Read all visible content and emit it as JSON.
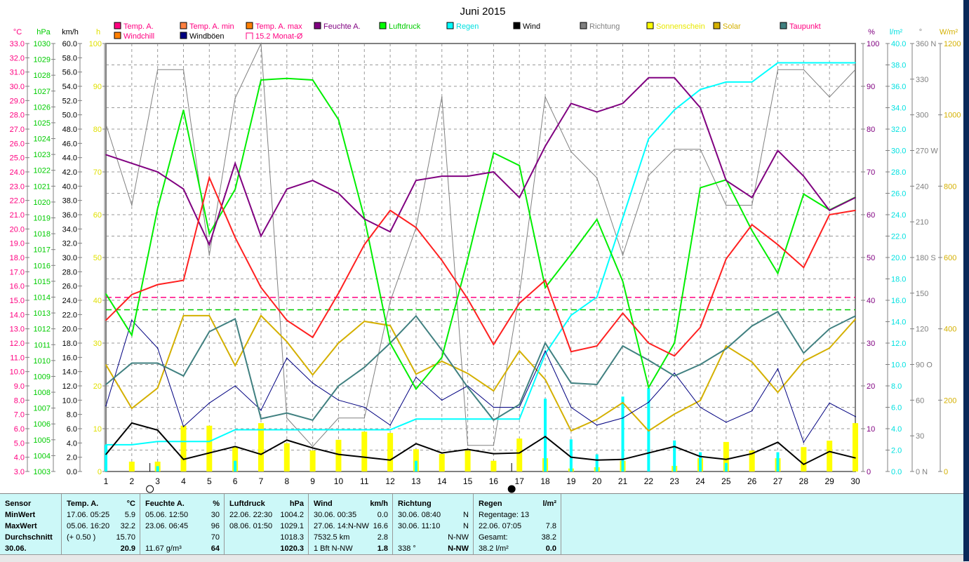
{
  "chart_data": {
    "type": "line",
    "title": "Juni 2015",
    "x": [
      1,
      2,
      3,
      4,
      5,
      6,
      7,
      8,
      9,
      10,
      11,
      12,
      13,
      14,
      15,
      16,
      17,
      18,
      19,
      20,
      21,
      22,
      23,
      24,
      25,
      26,
      27,
      28,
      29,
      30
    ],
    "axes": {
      "degC": {
        "label": "°C",
        "range": [
          3,
          33
        ],
        "ticks": [
          "33.0",
          "32.0",
          "31.0",
          "30.0",
          "29.0",
          "28.0",
          "27.0",
          "26.0",
          "25.0",
          "24.0",
          "23.0",
          "22.0",
          "21.0",
          "20.0",
          "19.0",
          "18.0",
          "17.0",
          "16.0",
          "15.0",
          "14.0",
          "13.0",
          "12.0",
          "11.0",
          "10.0",
          "9.0",
          "8.0",
          "7.0",
          "6.0",
          "5.0",
          "4.0",
          "3.0"
        ],
        "color": "#ff0080"
      },
      "hPa": {
        "label": "hPa",
        "range": [
          1003,
          1030
        ],
        "ticks": [
          "1030",
          "1029",
          "1028",
          "1027",
          "1026",
          "1025",
          "1024",
          "1023",
          "1022",
          "1021",
          "1020",
          "1019",
          "1018",
          "1017",
          "1016",
          "1015",
          "1014",
          "1013",
          "1012",
          "1011",
          "1010",
          "1009",
          "1008",
          "1007",
          "1006",
          "1005",
          "1004",
          "1003"
        ],
        "color": "#00cc00"
      },
      "kmh": {
        "label": "km/h",
        "range": [
          0,
          60
        ],
        "ticks": [
          "60.0",
          "58.0",
          "56.0",
          "54.0",
          "52.0",
          "50.0",
          "48.0",
          "46.0",
          "44.0",
          "42.0",
          "40.0",
          "38.0",
          "36.0",
          "34.0",
          "32.0",
          "30.0",
          "28.0",
          "26.0",
          "24.0",
          "22.0",
          "20.0",
          "18.0",
          "16.0",
          "14.0",
          "12.0",
          "10.0",
          "8.0",
          "6.0",
          "4.0",
          "2.0",
          "0.0"
        ],
        "color": "#000000"
      },
      "h": {
        "label": "h",
        "range": [
          0,
          100
        ],
        "ticks": [
          "100",
          "90",
          "80",
          "70",
          "60",
          "50",
          "40",
          "30",
          "20",
          "10",
          "0"
        ],
        "color": "#e0e000"
      },
      "pct": {
        "label": "%",
        "range": [
          0,
          100
        ],
        "ticks": [
          "100",
          "90",
          "80",
          "70",
          "60",
          "50",
          "40",
          "30",
          "20",
          "10",
          "0"
        ],
        "color": "#800080"
      },
      "lm2": {
        "label": "l/m²",
        "range": [
          0,
          40
        ],
        "ticks": [
          "40.0",
          "38.0",
          "36.0",
          "34.0",
          "32.0",
          "30.0",
          "28.0",
          "26.0",
          "24.0",
          "22.0",
          "20.0",
          "18.0",
          "16.0",
          "14.0",
          "12.0",
          "10.0",
          "8.0",
          "6.0",
          "4.0",
          "2.0",
          "0.0"
        ],
        "color": "#00e0e0"
      },
      "deg": {
        "label": "°",
        "range": [
          0,
          360
        ],
        "ticks": [
          "360 N",
          "330",
          "300",
          "270 W",
          "240",
          "210",
          "180 S",
          "150",
          "120",
          "90 O",
          "60",
          "30",
          "0 N"
        ],
        "color": "#808080"
      },
      "wm2": {
        "label": "W/m²",
        "range": [
          0,
          1200
        ],
        "ticks": [
          "1200",
          "1000",
          "800",
          "600",
          "400",
          "200",
          "0"
        ],
        "color": "#d4b000"
      }
    },
    "series": [
      {
        "name": "Richtung",
        "axis": "deg",
        "color": "#808080",
        "width": 1,
        "values": [
          292,
          224,
          338,
          338,
          182,
          314,
          360,
          45,
          21,
          45,
          45,
          143,
          205,
          315,
          22,
          22,
          149,
          315,
          269,
          247,
          182,
          249,
          271,
          271,
          224,
          224,
          338,
          338,
          315,
          338
        ]
      },
      {
        "name": "Solar",
        "axis": "wm2",
        "color": "#d4b000",
        "width": 2,
        "values": [
          299,
          177,
          234,
          437,
          437,
          297,
          437,
          364,
          271,
          360,
          421,
          409,
          273,
          309,
          275,
          226,
          338,
          258,
          114,
          146,
          193,
          114,
          161,
          199,
          352,
          307,
          222,
          309,
          346,
          427
        ]
      },
      {
        "name": "Regen",
        "axis": "lm2",
        "color": "#00ffff",
        "width": 2,
        "values": [
          2.5,
          2.5,
          2.8,
          2.8,
          2.8,
          3.9,
          3.9,
          3.9,
          3.9,
          3.9,
          3.9,
          3.9,
          4.9,
          4.9,
          4.9,
          4.9,
          4.9,
          11.0,
          14.6,
          16.3,
          23.7,
          31.1,
          33.8,
          35.7,
          36.4,
          36.4,
          38.2,
          38.2,
          38.2,
          38.2
        ]
      },
      {
        "name": "Windböen",
        "axis": "kmh",
        "color": "#000080",
        "width": 1,
        "values": [
          9.2,
          21.2,
          17.3,
          6.3,
          9.6,
          12.0,
          8.6,
          15.9,
          12.4,
          10.0,
          9.0,
          6.5,
          13.2,
          10.0,
          12.0,
          9.0,
          9.0,
          16.9,
          9.0,
          6.5,
          7.5,
          9.7,
          13.8,
          9.0,
          6.9,
          8.5,
          14.4,
          4.1,
          9.6,
          7.7
        ]
      },
      {
        "name": "Taupunkt",
        "axis": "degC",
        "color": "#408080",
        "width": 2,
        "values": [
          9.1,
          10.6,
          10.6,
          9.7,
          12.8,
          13.7,
          6.7,
          7.1,
          6.6,
          9.0,
          10.3,
          12.0,
          13.9,
          11.5,
          8.9,
          6.6,
          7.7,
          12.0,
          9.2,
          9.1,
          11.8,
          10.8,
          9.7,
          10.5,
          11.6,
          13.2,
          14.2,
          11.3,
          13.0,
          13.9
        ]
      },
      {
        "name": "Luftdruck",
        "axis": "hPa",
        "color": "#00ee00",
        "width": 2,
        "values": [
          1014.2,
          1011.6,
          1019.6,
          1025.8,
          1018.0,
          1020.8,
          1027.7,
          1027.8,
          1027.7,
          1025.2,
          1019.0,
          1011.1,
          1008.2,
          1010.2,
          1016.4,
          1023.1,
          1022.3,
          1014.6,
          1016.7,
          1018.9,
          1015.0,
          1008.3,
          1011.1,
          1020.9,
          1021.4,
          1018.2,
          1015.5,
          1020.5,
          1019.5,
          1020.3
        ]
      },
      {
        "name": "Feuchte A.",
        "axis": "pct",
        "color": "#800080",
        "width": 2,
        "values": [
          74,
          72,
          70,
          66,
          53,
          72,
          55,
          66,
          68,
          65,
          59,
          56,
          68,
          69,
          69,
          70,
          64,
          76,
          86,
          84,
          86,
          92,
          92,
          85,
          68,
          64,
          75,
          69,
          61,
          64
        ]
      },
      {
        "name": "Temp. A.",
        "axis": "degC",
        "color": "#ff2020",
        "width": 2,
        "values": [
          13.6,
          15.4,
          16.1,
          16.4,
          23.6,
          19.4,
          15.9,
          13.6,
          12.4,
          15.5,
          18.9,
          21.3,
          20.1,
          17.8,
          15.1,
          11.9,
          14.8,
          16.4,
          11.4,
          11.8,
          14.1,
          12.0,
          11.1,
          13.1,
          17.9,
          20.3,
          18.9,
          17.3,
          21.0,
          21.3
        ]
      },
      {
        "name": "Wind",
        "axis": "kmh",
        "color": "#000000",
        "width": 2,
        "values": [
          2.4,
          6.8,
          5.8,
          1.7,
          2.6,
          3.5,
          2.4,
          4.4,
          3.3,
          2.4,
          2.0,
          1.6,
          3.9,
          2.6,
          3.1,
          2.5,
          2.6,
          4.9,
          2.0,
          1.6,
          1.7,
          2.6,
          3.5,
          2.1,
          1.7,
          2.5,
          4.1,
          1.0,
          2.8,
          1.9
        ]
      }
    ],
    "bars": [
      {
        "name": "Sonnenschein",
        "axis": "h",
        "color": "#ffff00",
        "values": [
          0,
          2.3,
          2.3,
          10.7,
          10.7,
          5.7,
          11.3,
          6.6,
          4.9,
          7.4,
          9.3,
          9.0,
          5.2,
          4.1,
          4.9,
          2.5,
          7.7,
          3.1,
          0.7,
          1.0,
          2.5,
          0,
          1.3,
          3.1,
          6.9,
          4.9,
          3.1,
          5.7,
          7.2,
          11.3
        ]
      },
      {
        "name": "Regen täglich",
        "axis": "lm2",
        "color": "#00ffff",
        "values": [
          2.5,
          0,
          0.5,
          0,
          0,
          1.0,
          0,
          0,
          0,
          0,
          0,
          0,
          1.0,
          0,
          0,
          0,
          0,
          6.8,
          3.0,
          1.6,
          7.0,
          7.8,
          2.9,
          1.8,
          0.8,
          0,
          1.8,
          0,
          0,
          0
        ]
      }
    ],
    "reference_lines": [
      {
        "name": "15.2 Monat-Ø",
        "axis": "degC",
        "value": 15.2,
        "color": "#ff0080"
      },
      {
        "name": "Luftdruck Mittel",
        "axis": "hPa",
        "value": 1013.2,
        "color": "#00cc00"
      }
    ],
    "moon": [
      {
        "phase": "full",
        "day": 2.7
      },
      {
        "phase": "new",
        "day": 16.7
      }
    ],
    "legend": [
      {
        "label": "Temp. A.",
        "color": "#ff0080",
        "text": "#ff0080"
      },
      {
        "label": "Temp. A. min",
        "color": "#ff8040",
        "text": "#ff0080"
      },
      {
        "label": "Temp. A. max",
        "color": "#ff8000",
        "text": "#ff0080"
      },
      {
        "label": "Feuchte A.",
        "color": "#800080",
        "text": "#800080"
      },
      {
        "label": "Luftdruck",
        "color": "#00ff00",
        "text": "#00cc00"
      },
      {
        "label": "Regen",
        "color": "#00ffff",
        "text": "#00e0e0"
      },
      {
        "label": "Wind",
        "color": "#000000",
        "text": "#000000"
      },
      {
        "label": "Richtung",
        "color": "#808080",
        "text": "#808080"
      },
      {
        "label": "Sonnenschein",
        "color": "#ffff00",
        "text": "#e8e800"
      },
      {
        "label": "Solar",
        "color": "#d4b000",
        "text": "#d4b000"
      },
      {
        "label": "Taupunkt",
        "color": "#408080",
        "text": "#ff0080"
      },
      {
        "label": "Windchill",
        "color": "#ff8000",
        "text": "#ff0080"
      },
      {
        "label": "Windböen",
        "color": "#000080",
        "text": "#000000"
      },
      {
        "label": "15.2 Monat-Ø",
        "color": "none",
        "text": "#ff0080"
      }
    ]
  },
  "table": {
    "sensor": {
      "h": "Sensor",
      "rows": [
        "MinWert",
        "MaxWert",
        "Durchschnitt",
        "30.06."
      ]
    },
    "temp": {
      "h": "Temp. A.",
      "u": "°C",
      "rows": [
        [
          "17.06.  05:25",
          "5.9"
        ],
        [
          "05.06.  16:20",
          "32.2"
        ],
        [
          "(+ 0.50 )",
          "15.70"
        ],
        [
          "",
          "20.9"
        ]
      ]
    },
    "feuchte": {
      "h": "Feuchte A.",
      "u": "%",
      "rows": [
        [
          "05.06.  12:50",
          "30"
        ],
        [
          "23.06.  06:45",
          "96"
        ],
        [
          "",
          "70"
        ],
        [
          "11.67 g/m³",
          "64"
        ]
      ]
    },
    "druck": {
      "h": "Luftdruck",
      "u": "hPa",
      "rows": [
        [
          "22.06.  22:30",
          "1004.2"
        ],
        [
          "08.06.  01:50",
          "1029.1"
        ],
        [
          "",
          "1018.3"
        ],
        [
          "",
          "1020.3"
        ]
      ]
    },
    "wind": {
      "h": "Wind",
      "u": "km/h",
      "rows": [
        [
          "30.06.  00:35",
          "0.0"
        ],
        [
          "27.06.  14:N-NW",
          "16.6"
        ],
        [
          "7532.5 km",
          "2.8"
        ],
        [
          "1 Bft N-NW",
          "1.8"
        ]
      ]
    },
    "richtung": {
      "h": "Richtung",
      "u": "",
      "rows": [
        [
          "30.06.  08:40",
          "N"
        ],
        [
          "30.06.  11:10",
          "N"
        ],
        [
          "",
          "N-NW"
        ],
        [
          "338 °",
          "N-NW"
        ]
      ]
    },
    "regen": {
      "h": "Regen",
      "u": "l/m²",
      "rows": [
        [
          "Regentage: 13",
          ""
        ],
        [
          "22.06.  07:05",
          "7.8"
        ],
        [
          "Gesamt:",
          "38.2"
        ],
        [
          "38.2 l/m²",
          "0.0"
        ]
      ]
    }
  }
}
